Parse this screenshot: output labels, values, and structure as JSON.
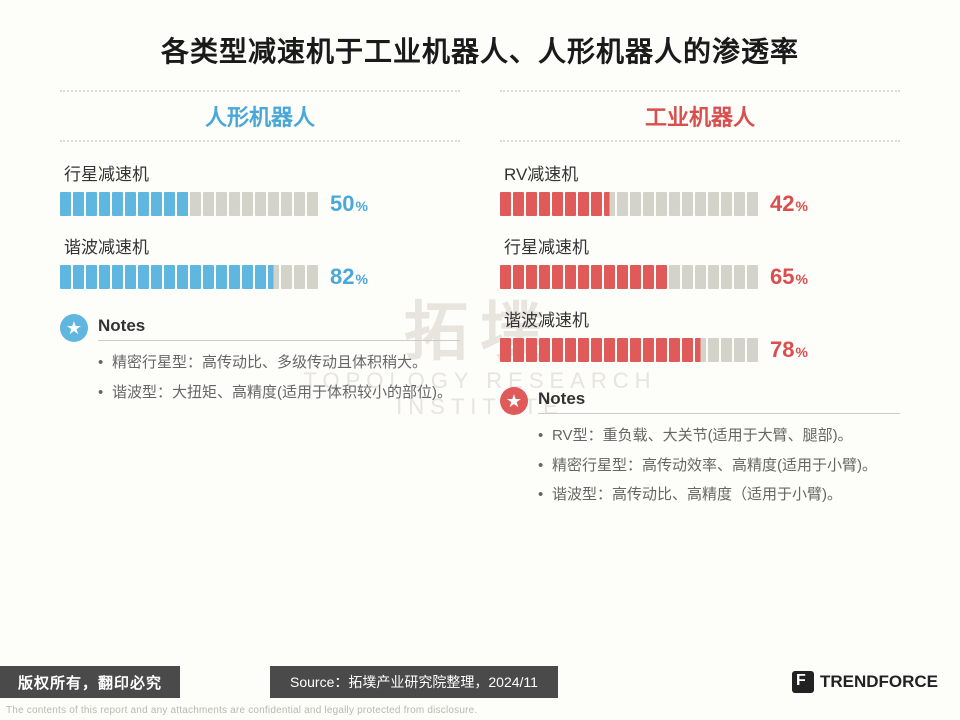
{
  "title": "各类型减速机于工业机器人、人形机器人的渗透率",
  "watermark": {
    "line1": "拓墣",
    "line2": "TOPOLOGY RESEARCH INSTITUTE"
  },
  "colors": {
    "blue": "#5fb7e0",
    "bluetxt": "#4aa8d8",
    "red": "#e05a5a",
    "redtxt": "#d94f4f",
    "inactive": "#d3d3c9",
    "border": "#dcdcd2",
    "bg": "#fdfdf9",
    "footerbg": "#4a4a4a",
    "footertxt": "#ffffff"
  },
  "segments_total": 20,
  "left": {
    "header": "人形机器人",
    "color": "blue",
    "bars": [
      {
        "label": "行星减速机",
        "value": 50,
        "display": "50",
        "unit": "%"
      },
      {
        "label": "谐波减速机",
        "value": 82,
        "display": "82",
        "unit": "%"
      }
    ],
    "notes_title": "Notes",
    "notes": [
      "精密行星型：高传动比、多级传动且体积稍大。",
      "谐波型：大扭矩、高精度(适用于体积较小的部位)。"
    ]
  },
  "right": {
    "header": "工业机器人",
    "color": "red",
    "bars": [
      {
        "label": "RV减速机",
        "value": 42,
        "display": "42",
        "unit": "%"
      },
      {
        "label": "行星减速机",
        "value": 65,
        "display": "65",
        "unit": "%"
      },
      {
        "label": "谐波减速机",
        "value": 78,
        "display": "78",
        "unit": "%"
      }
    ],
    "notes_title": "Notes",
    "notes": [
      "RV型：重负载、大关节(适用于大臂、腿部)。",
      "精密行星型：高传动效率、高精度(适用于小臂)。",
      "谐波型：高传动比、高精度（适用于小臂)。"
    ]
  },
  "footer": {
    "copyright": "版权所有，翻印必究",
    "source": "Source：拓墣产业研究院整理，2024/11",
    "brand": "TRENDFORCE"
  },
  "disclaimer": "The contents of this report and any attachments are confidential and legally protected from disclosure."
}
